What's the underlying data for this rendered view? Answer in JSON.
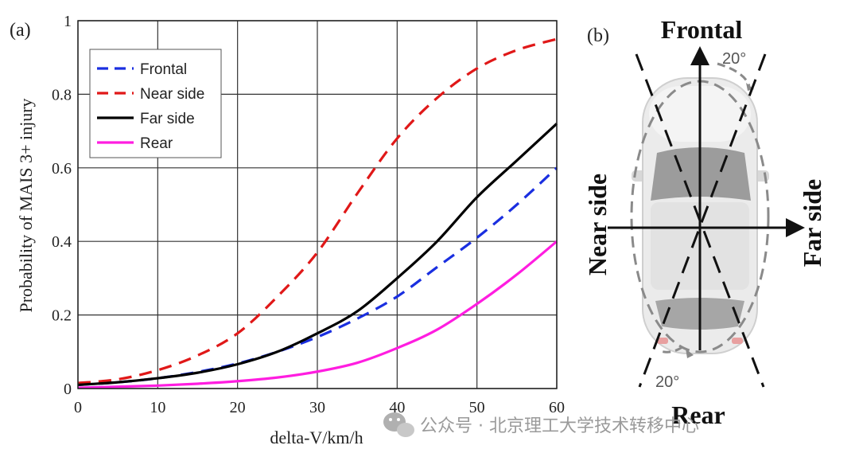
{
  "panel_a_label": "(a)",
  "panel_b_label": "(b)",
  "chart_data": {
    "type": "line",
    "xlabel": "delta-V/km/h",
    "ylabel": "Probability of MAIS 3+ injury",
    "xlim": [
      0,
      60
    ],
    "ylim": [
      0,
      1
    ],
    "xticks": [
      "0",
      "10",
      "20",
      "30",
      "40",
      "50",
      "60"
    ],
    "yticks": [
      "0",
      "0.2",
      "0.4",
      "0.6",
      "0.8",
      "1"
    ],
    "grid": true,
    "legend_position": "top-left",
    "x": [
      0,
      5,
      10,
      15,
      20,
      25,
      30,
      35,
      40,
      45,
      50,
      55,
      60
    ],
    "series": [
      {
        "name": "Frontal",
        "color": "#1a2fe0",
        "dash": "dashed",
        "values": [
          0.01,
          0.017,
          0.028,
          0.045,
          0.068,
          0.1,
          0.14,
          0.19,
          0.25,
          0.33,
          0.41,
          0.5,
          0.6
        ]
      },
      {
        "name": "Near side",
        "color": "#e01818",
        "dash": "dashed",
        "values": [
          0.015,
          0.025,
          0.05,
          0.09,
          0.15,
          0.25,
          0.37,
          0.53,
          0.68,
          0.79,
          0.87,
          0.92,
          0.95
        ]
      },
      {
        "name": "Far side",
        "color": "#000000",
        "dash": "solid",
        "values": [
          0.01,
          0.017,
          0.028,
          0.043,
          0.066,
          0.1,
          0.15,
          0.21,
          0.3,
          0.4,
          0.52,
          0.62,
          0.72
        ]
      },
      {
        "name": "Rear",
        "color": "#ff1de0",
        "dash": "solid",
        "values": [
          0.002,
          0.005,
          0.008,
          0.013,
          0.02,
          0.03,
          0.046,
          0.07,
          0.11,
          0.16,
          0.23,
          0.31,
          0.4
        ]
      }
    ]
  },
  "diagram": {
    "frontal": "Frontal",
    "rear": "Rear",
    "near_side": "Near side",
    "far_side": "Far side",
    "angle_top": "20°",
    "angle_bottom": "20°"
  },
  "watermark": {
    "text": "公众号 · 北京理工大学技术转移中心",
    "icon": "wechat-icon"
  }
}
